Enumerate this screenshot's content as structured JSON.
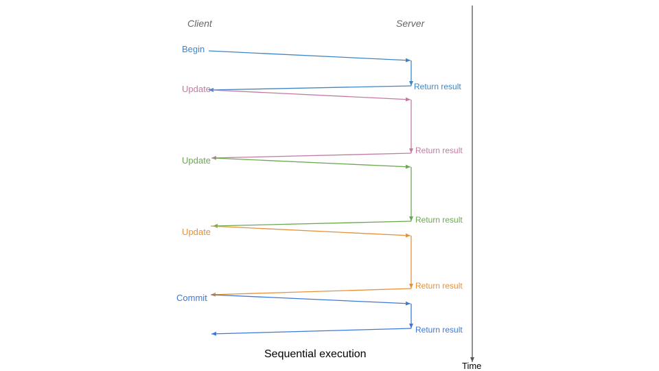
{
  "headers": {
    "client": "Client",
    "server": "Server"
  },
  "caption": "Sequential execution",
  "time_axis": {
    "label": "Time",
    "color": "#555555"
  },
  "exchanges": [
    {
      "request": "Begin",
      "response": "Return result",
      "color": "#3d85c6"
    },
    {
      "request": "Update",
      "response": "Return result",
      "color": "#c27ba0"
    },
    {
      "request": "Update",
      "response": "Return result",
      "color": "#6aa84f"
    },
    {
      "request": "Update",
      "response": "Return result",
      "color": "#e69138"
    },
    {
      "request": "Commit",
      "response": "Return result",
      "color": "#3c78d8"
    }
  ]
}
